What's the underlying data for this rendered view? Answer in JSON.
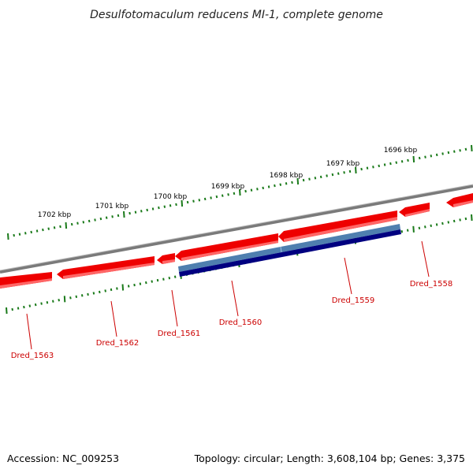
{
  "title": "Desulfotomaculum reducens MI-1, complete genome",
  "scale_labels": [
    "1702 kbp",
    "1701 kbp",
    "1700 kbp",
    "1699 kbp",
    "1698 kbp",
    "1697 kbp",
    "1696 kbp"
  ],
  "genes": [
    {
      "name": "Dred_1563",
      "strand": "minus"
    },
    {
      "name": "Dred_1562",
      "strand": "minus"
    },
    {
      "name": "Dred_1561",
      "strand": "minus"
    },
    {
      "name": "Dred_1560",
      "strand": "minus"
    },
    {
      "name": "Dred_1559",
      "strand": "minus"
    },
    {
      "name": "Dred_1558",
      "strand": "minus"
    }
  ],
  "footer": {
    "accession": "Accession: NC_009253",
    "topology": "Topology: circular; Length: 3,608,104 bp; Genes: 3,375"
  },
  "colors": {
    "gene": "#ee0000",
    "gene_highlight": "#ff6666",
    "backbone": "#7a7a7a",
    "cds_light": "#4f7faf",
    "cds_dark": "#000080",
    "tick": "#1a7a1a",
    "label": "#cc0000"
  }
}
